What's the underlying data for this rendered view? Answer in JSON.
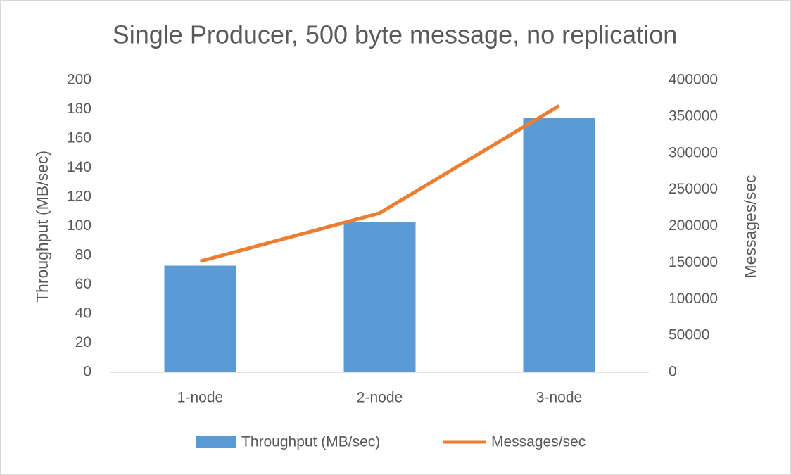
{
  "chart_data": {
    "type": "combo",
    "title": "Single Producer, 500 byte message, no replication",
    "categories": [
      "1-node",
      "2-node",
      "3-node"
    ],
    "y_label": "Throughput (MB/sec)",
    "y2_label": "Messages/sec",
    "series": [
      {
        "name": "Throughput (MB/sec)",
        "type": "bar",
        "color": "#5b9bd5",
        "values": [
          73,
          103,
          174
        ]
      },
      {
        "name": "Messages/sec",
        "type": "line",
        "axis": "y2",
        "color": "#ed7d31",
        "values": [
          152000,
          218000,
          365000
        ]
      }
    ],
    "ylim": [
      0,
      200
    ],
    "yticks": [
      0,
      20,
      40,
      60,
      80,
      100,
      120,
      140,
      160,
      180,
      200
    ],
    "y2lim": [
      0,
      400000
    ],
    "y2ticks": [
      0,
      50000,
      100000,
      150000,
      200000,
      250000,
      300000,
      350000,
      400000
    ],
    "grid": false,
    "legend": "bottom"
  }
}
